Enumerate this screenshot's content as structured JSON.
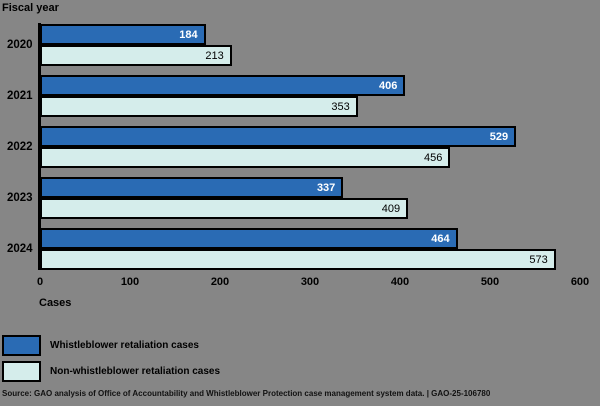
{
  "y_axis_title": "Fiscal year",
  "x_axis_title": "Cases",
  "chart_data": {
    "type": "bar",
    "orientation": "horizontal",
    "title": "",
    "xlabel": "Cases",
    "ylabel": "Fiscal year",
    "categories": [
      "2020",
      "2021",
      "2022",
      "2023",
      "2024"
    ],
    "series": [
      {
        "name": "Whistleblower retaliation cases",
        "color": "#2a6bb4",
        "values": [
          184,
          406,
          529,
          337,
          464
        ]
      },
      {
        "name": "Non-whistleblower retaliation cases",
        "color": "#d5edeb",
        "values": [
          213,
          353,
          456,
          409,
          573
        ]
      }
    ],
    "x_ticks": [
      0,
      100,
      200,
      300,
      400,
      500,
      600
    ],
    "xlim": [
      0,
      600
    ],
    "grid": false,
    "legend_position": "bottom-left",
    "value_labels": "inside-end"
  },
  "source_note": "Source: GAO analysis of Office of Accountability and Whistleblower Protection case management system data.  |  GAO-25-106780",
  "colors": {
    "background": "#868686",
    "bar_primary": "#2a6bb4",
    "bar_secondary": "#d5edeb",
    "bar_border": "#000000",
    "axis_line": "#000000"
  }
}
